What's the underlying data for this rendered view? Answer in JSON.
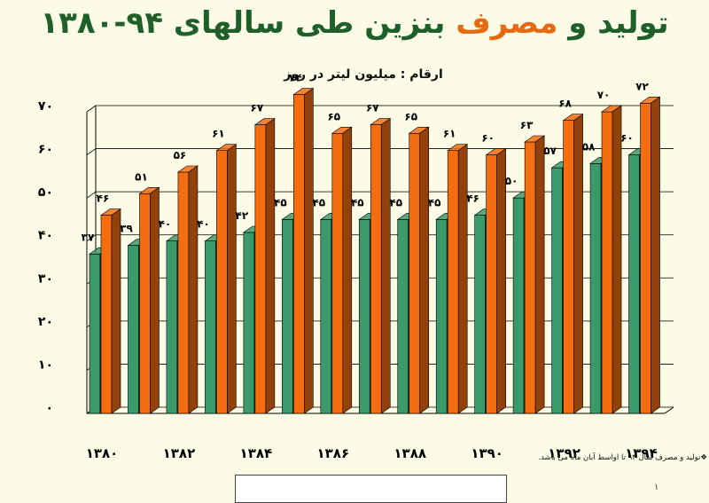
{
  "title": {
    "part1": "تولید و ",
    "part2": "مصرف",
    "part3": " بنزین طی سالهای ۹۴-۱۳۸۰"
  },
  "footnote": "❖تولید و مصرف سال ۹۴ تا اواسط آبان ماه می باشد.",
  "page_mark": "۱",
  "colors": {
    "production": "#3a9a6b",
    "consumption": "#f46d10",
    "background": "#fbfbe6"
  },
  "chart_data": {
    "type": "bar",
    "subtitle": "ارقام : میلیون لیتر در روز",
    "categories": [
      "۱۳۸۰",
      "",
      "۱۳۸۲",
      "",
      "۱۳۸۴",
      "",
      "۱۳۸۶",
      "",
      "۱۳۸۸",
      "",
      "۱۳۹۰",
      "",
      "۱۳۹۲",
      "",
      "۱۳۹۴"
    ],
    "series": [
      {
        "values": [
          37,
          39,
          40,
          40,
          42,
          45,
          45,
          45,
          45,
          45,
          46,
          50,
          57,
          58,
          60
        ]
      },
      {
        "values": [
          46,
          51,
          56,
          61,
          67,
          74,
          65,
          67,
          65,
          61,
          60,
          63,
          68,
          70,
          72
        ]
      }
    ],
    "value_labels": {
      "production": [
        "۳۷",
        "۳۹",
        "۴۰",
        "۴۰",
        "۴۲",
        "۴۵",
        "۴۵",
        "۴۵",
        "۴۵",
        "۴۵",
        "۴۶",
        "۵۰",
        "۵۷",
        "۵۸",
        "۶۰"
      ],
      "consumption": [
        "۴۶",
        "۵۱",
        "۵۶",
        "۶۱",
        "۶۷",
        "۷۴",
        "۶۵",
        "۶۷",
        "۶۵",
        "۶۱",
        "۶۰",
        "۶۳",
        "۶۸",
        "۷۰",
        "۷۲"
      ]
    },
    "y_ticks": [
      0,
      10,
      20,
      30,
      40,
      50,
      60,
      70
    ],
    "y_tick_labels": [
      "۰",
      "۱۰",
      "۲۰",
      "۳۰",
      "۴۰",
      "۵۰",
      "۶۰",
      "۷۰"
    ],
    "ylim": [
      0,
      70
    ],
    "grid": true,
    "bar_style": "3d"
  }
}
